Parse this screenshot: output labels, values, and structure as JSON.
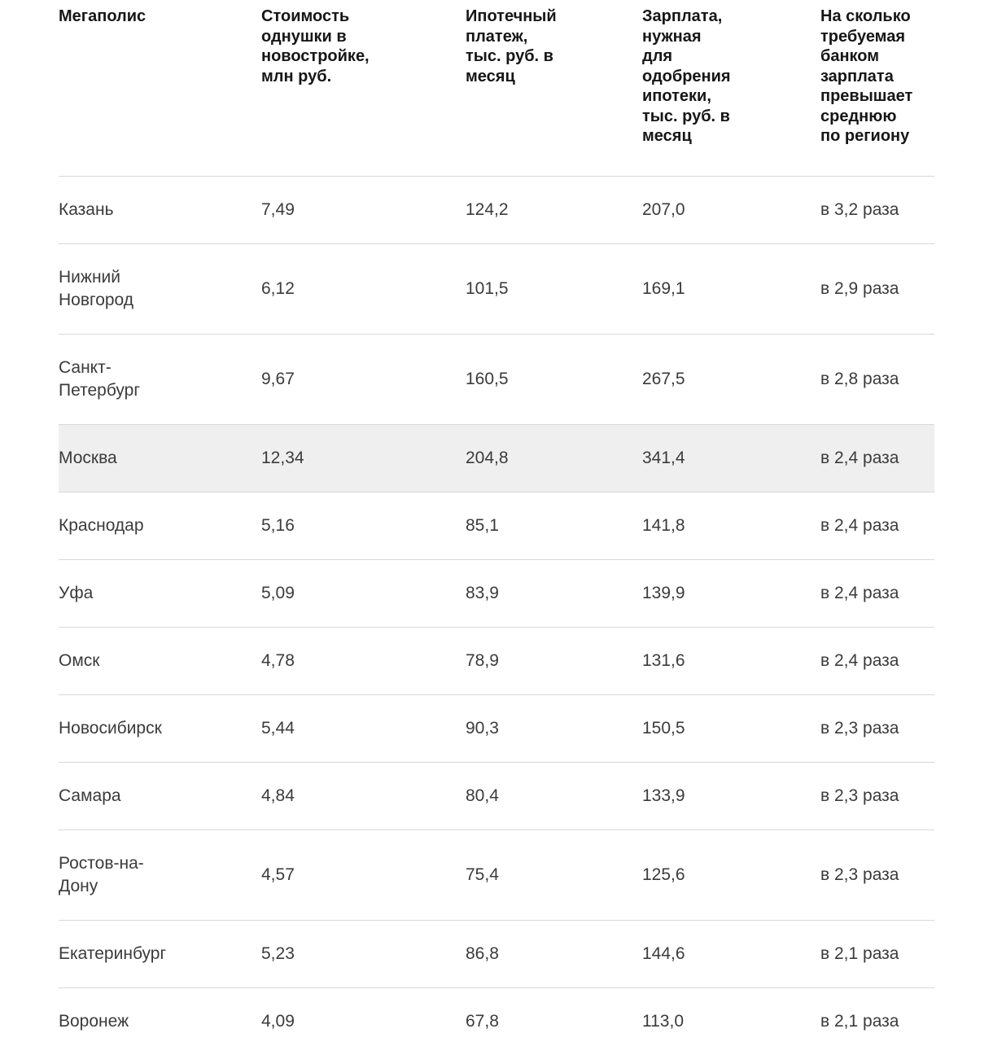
{
  "table": {
    "columns": [
      {
        "label": "Мегаполис"
      },
      {
        "label": "Стоимость\nоднушки в\nновостройке,\nмлн руб."
      },
      {
        "label": "Ипотечный\nплатеж,\nтыс. руб. в\nмесяц"
      },
      {
        "label": "Зарплата,\nнужная\nдля\nодобрения\nипотеки,\nтыс. руб. в\nмесяц"
      },
      {
        "label": "На сколько\nтребуемая\nбанком\nзарплата\nпревышает\nсреднюю\nпо региону"
      }
    ],
    "rows": [
      {
        "city": "Казань",
        "price": "7,49",
        "payment": "124,2",
        "salary": "207,0",
        "ratio": "в 3,2 раза",
        "highlighted": false
      },
      {
        "city": "Нижний\nНовгород",
        "price": "6,12",
        "payment": "101,5",
        "salary": "169,1",
        "ratio": "в 2,9 раза",
        "highlighted": false
      },
      {
        "city": "Санкт-\nПетербург",
        "price": "9,67",
        "payment": "160,5",
        "salary": "267,5",
        "ratio": "в 2,8 раза",
        "highlighted": false
      },
      {
        "city": "Москва",
        "price": "12,34",
        "payment": "204,8",
        "salary": "341,4",
        "ratio": "в 2,4 раза",
        "highlighted": true
      },
      {
        "city": "Краснодар",
        "price": "5,16",
        "payment": "85,1",
        "salary": "141,8",
        "ratio": "в 2,4 раза",
        "highlighted": false
      },
      {
        "city": "Уфа",
        "price": "5,09",
        "payment": "83,9",
        "salary": "139,9",
        "ratio": "в 2,4 раза",
        "highlighted": false
      },
      {
        "city": "Омск",
        "price": "4,78",
        "payment": "78,9",
        "salary": "131,6",
        "ratio": "в 2,4 раза",
        "highlighted": false
      },
      {
        "city": "Новосибирск",
        "price": "5,44",
        "payment": "90,3",
        "salary": "150,5",
        "ratio": "в 2,3 раза",
        "highlighted": false
      },
      {
        "city": "Самара",
        "price": "4,84",
        "payment": "80,4",
        "salary": "133,9",
        "ratio": "в 2,3 раза",
        "highlighted": false
      },
      {
        "city": "Ростов-на-\nДону",
        "price": "4,57",
        "payment": "75,4",
        "salary": "125,6",
        "ratio": "в 2,3 раза",
        "highlighted": false
      },
      {
        "city": "Екатеринбург",
        "price": "5,23",
        "payment": "86,8",
        "salary": "144,6",
        "ratio": "в 2,1 раза",
        "highlighted": false
      },
      {
        "city": "Воронеж",
        "price": "4,09",
        "payment": "67,8",
        "salary": "113,0",
        "ratio": "в 2,1 раза",
        "highlighted": false
      }
    ],
    "highlighted_row": "Москва"
  },
  "colors": {
    "header_text": "#161616",
    "body_text": "#3b3b3b",
    "divider": "#d8d8d8",
    "highlight_row_bg": "#efefef",
    "page_bg": "#ffffff"
  },
  "chart_data": {
    "type": "table",
    "columns": [
      "Мегаполис",
      "Стоимость однушки в новостройке, млн руб.",
      "Ипотечный платеж, тыс. руб. в месяц",
      "Зарплата, нужная для одобрения ипотеки, тыс. руб. в месяц",
      "На сколько требуемая банком зарплата превышает среднюю по региону"
    ],
    "rows": [
      [
        "Казань",
        7.49,
        124.2,
        207.0,
        "в 3,2 раза"
      ],
      [
        "Нижний Новгород",
        6.12,
        101.5,
        169.1,
        "в 2,9 раза"
      ],
      [
        "Санкт-Петербург",
        9.67,
        160.5,
        267.5,
        "в 2,8 раза"
      ],
      [
        "Москва",
        12.34,
        204.8,
        341.4,
        "в 2,4 раза"
      ],
      [
        "Краснодар",
        5.16,
        85.1,
        141.8,
        "в 2,4 раза"
      ],
      [
        "Уфа",
        5.09,
        83.9,
        139.9,
        "в 2,4 раза"
      ],
      [
        "Омск",
        4.78,
        78.9,
        131.6,
        "в 2,4 раза"
      ],
      [
        "Новосибирск",
        5.44,
        90.3,
        150.5,
        "в 2,3 раза"
      ],
      [
        "Самара",
        4.84,
        80.4,
        133.9,
        "в 2,3 раза"
      ],
      [
        "Ростов-на-Дону",
        4.57,
        75.4,
        125.6,
        "в 2,3 раза"
      ],
      [
        "Екатеринбург",
        5.23,
        86.8,
        144.6,
        "в 2,1 раза"
      ],
      [
        "Воронеж",
        4.09,
        67.8,
        113.0,
        "в 2,1 раза"
      ]
    ],
    "ratio_values": [
      3.2,
      2.9,
      2.8,
      2.4,
      2.4,
      2.4,
      2.4,
      2.3,
      2.3,
      2.3,
      2.1,
      2.1
    ],
    "highlighted_row": "Москва",
    "layout": {
      "grid": "horizontal-row-dividers",
      "legend": "none"
    }
  }
}
